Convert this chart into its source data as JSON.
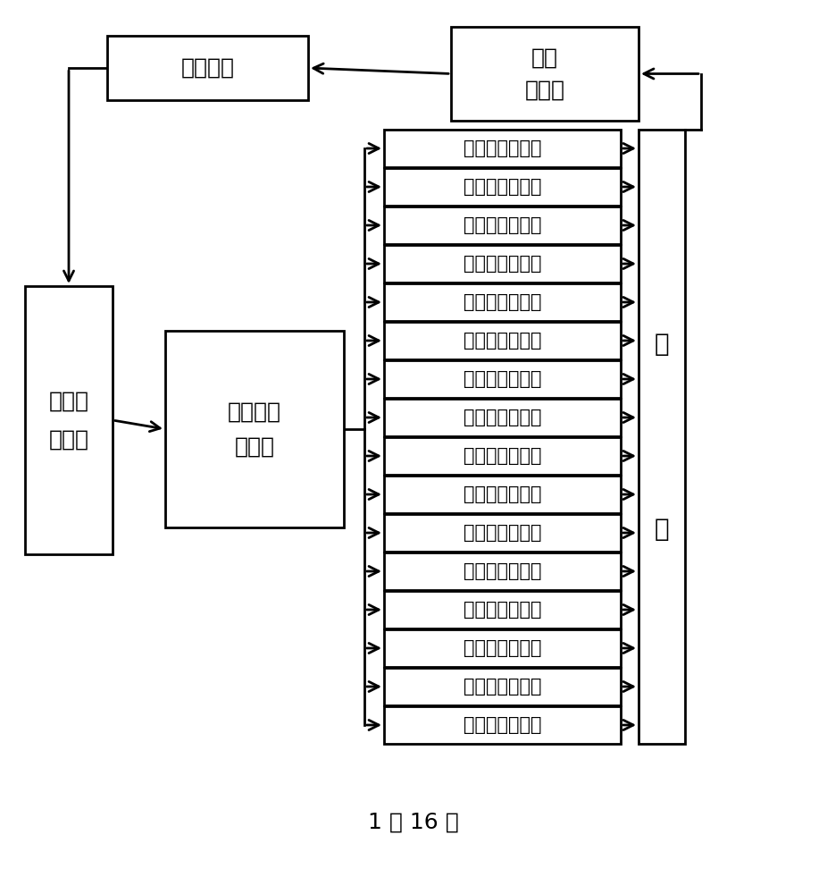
{
  "title_bottom": "1 分 16 路",
  "box_micro": "微控制器",
  "box_temp": "温度\n传感器",
  "box_source": "可变频\n固态源",
  "box_divider": "产生相差\n功分器",
  "box_antenna": "相控阵天线单元",
  "box_cavity_top": "腔",
  "box_cavity_bot": "体",
  "n_antennas": 16,
  "bg_color": "#ffffff",
  "box_edge_color": "#000000",
  "text_color": "#000000",
  "arrow_color": "#000000",
  "lw": 2.0,
  "font_size_large": 18,
  "font_size_med": 16,
  "font_size_small": 15,
  "font_size_caption": 18
}
